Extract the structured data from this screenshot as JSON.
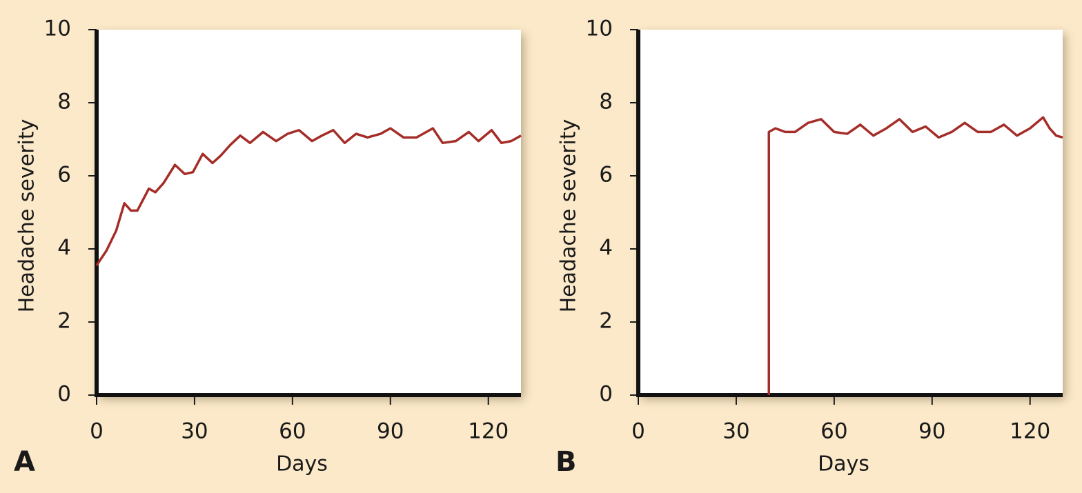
{
  "chart_data": [
    {
      "type": "line",
      "label": "A",
      "ylabel": "Headache severity",
      "xlabel": "Days",
      "x": [
        0,
        3,
        6,
        8.5,
        10.5,
        12.5,
        16,
        18,
        20.5,
        24,
        27,
        29.5,
        32.5,
        35.5,
        38,
        41,
        44,
        47,
        51,
        55,
        58.5,
        62,
        66,
        69,
        72.5,
        76,
        79.5,
        83,
        87,
        90,
        94,
        98,
        103,
        106,
        110,
        114,
        117,
        121,
        124,
        127,
        130
      ],
      "series": [
        {
          "color": "#a52d28",
          "values": [
            3.55,
            3.95,
            4.5,
            5.25,
            5.05,
            5.05,
            5.65,
            5.55,
            5.8,
            6.3,
            6.05,
            6.1,
            6.6,
            6.35,
            6.55,
            6.85,
            7.1,
            6.9,
            7.2,
            6.95,
            7.15,
            7.25,
            6.95,
            7.1,
            7.25,
            6.9,
            7.15,
            7.05,
            7.15,
            7.3,
            7.05,
            7.05,
            7.3,
            6.9,
            6.95,
            7.2,
            6.95,
            7.25,
            6.9,
            6.95,
            7.1
          ]
        }
      ],
      "xlim": [
        0,
        130
      ],
      "xticks": [
        0,
        30,
        60,
        90,
        120
      ],
      "ylim": [
        0,
        10
      ],
      "yticks": [
        0,
        2,
        4,
        6,
        8,
        10
      ]
    },
    {
      "type": "line",
      "label": "B",
      "ylabel": "Headache severity",
      "xlabel": "Days",
      "x": [
        40,
        40,
        42,
        45,
        48,
        52,
        56,
        60,
        64,
        68,
        72,
        76,
        80,
        84,
        88,
        92,
        96,
        100,
        104,
        108,
        112,
        116,
        120,
        124,
        126,
        128,
        130
      ],
      "series": [
        {
          "color": "#a52d28",
          "values": [
            0,
            7.2,
            7.3,
            7.2,
            7.2,
            7.45,
            7.55,
            7.2,
            7.15,
            7.4,
            7.1,
            7.3,
            7.55,
            7.2,
            7.35,
            7.05,
            7.2,
            7.45,
            7.2,
            7.2,
            7.4,
            7.1,
            7.3,
            7.6,
            7.3,
            7.1,
            7.05
          ]
        }
      ],
      "xlim": [
        0,
        130
      ],
      "xticks": [
        0,
        30,
        60,
        90,
        120
      ],
      "ylim": [
        0,
        10
      ],
      "yticks": [
        0,
        2,
        4,
        6,
        8,
        10
      ]
    }
  ]
}
